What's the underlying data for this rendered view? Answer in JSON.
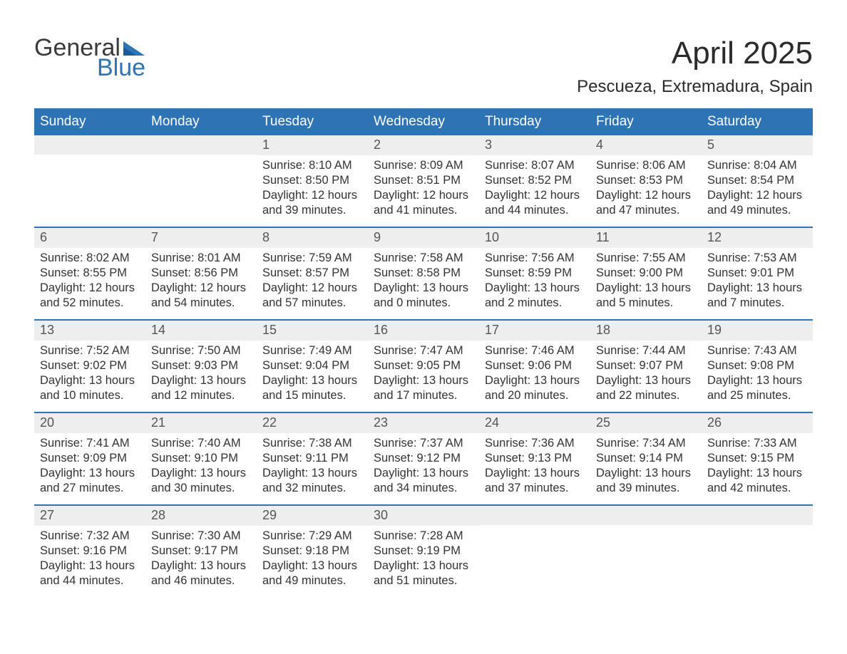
{
  "logo": {
    "word1": "General",
    "word2": "Blue",
    "color1": "#3a3a3a",
    "color2": "#2e74b5"
  },
  "title": "April 2025",
  "location": "Pescueza, Extremadura, Spain",
  "colors": {
    "header_bg": "#2e74b5",
    "header_text": "#ffffff",
    "daynum_bg": "#eeeeee",
    "row_border": "#2e74b5",
    "body_text": "#333333",
    "background": "#ffffff"
  },
  "fonts": {
    "title_size_pt": 33,
    "location_size_pt": 18,
    "dayheader_size_pt": 14,
    "daynum_size_pt": 14,
    "body_size_pt": 12
  },
  "day_labels": [
    "Sunday",
    "Monday",
    "Tuesday",
    "Wednesday",
    "Thursday",
    "Friday",
    "Saturday"
  ],
  "weeks": [
    [
      null,
      null,
      {
        "n": "1",
        "sunrise": "8:10 AM",
        "sunset": "8:50 PM",
        "daylight": "12 hours and 39 minutes."
      },
      {
        "n": "2",
        "sunrise": "8:09 AM",
        "sunset": "8:51 PM",
        "daylight": "12 hours and 41 minutes."
      },
      {
        "n": "3",
        "sunrise": "8:07 AM",
        "sunset": "8:52 PM",
        "daylight": "12 hours and 44 minutes."
      },
      {
        "n": "4",
        "sunrise": "8:06 AM",
        "sunset": "8:53 PM",
        "daylight": "12 hours and 47 minutes."
      },
      {
        "n": "5",
        "sunrise": "8:04 AM",
        "sunset": "8:54 PM",
        "daylight": "12 hours and 49 minutes."
      }
    ],
    [
      {
        "n": "6",
        "sunrise": "8:02 AM",
        "sunset": "8:55 PM",
        "daylight": "12 hours and 52 minutes."
      },
      {
        "n": "7",
        "sunrise": "8:01 AM",
        "sunset": "8:56 PM",
        "daylight": "12 hours and 54 minutes."
      },
      {
        "n": "8",
        "sunrise": "7:59 AM",
        "sunset": "8:57 PM",
        "daylight": "12 hours and 57 minutes."
      },
      {
        "n": "9",
        "sunrise": "7:58 AM",
        "sunset": "8:58 PM",
        "daylight": "13 hours and 0 minutes."
      },
      {
        "n": "10",
        "sunrise": "7:56 AM",
        "sunset": "8:59 PM",
        "daylight": "13 hours and 2 minutes."
      },
      {
        "n": "11",
        "sunrise": "7:55 AM",
        "sunset": "9:00 PM",
        "daylight": "13 hours and 5 minutes."
      },
      {
        "n": "12",
        "sunrise": "7:53 AM",
        "sunset": "9:01 PM",
        "daylight": "13 hours and 7 minutes."
      }
    ],
    [
      {
        "n": "13",
        "sunrise": "7:52 AM",
        "sunset": "9:02 PM",
        "daylight": "13 hours and 10 minutes."
      },
      {
        "n": "14",
        "sunrise": "7:50 AM",
        "sunset": "9:03 PM",
        "daylight": "13 hours and 12 minutes."
      },
      {
        "n": "15",
        "sunrise": "7:49 AM",
        "sunset": "9:04 PM",
        "daylight": "13 hours and 15 minutes."
      },
      {
        "n": "16",
        "sunrise": "7:47 AM",
        "sunset": "9:05 PM",
        "daylight": "13 hours and 17 minutes."
      },
      {
        "n": "17",
        "sunrise": "7:46 AM",
        "sunset": "9:06 PM",
        "daylight": "13 hours and 20 minutes."
      },
      {
        "n": "18",
        "sunrise": "7:44 AM",
        "sunset": "9:07 PM",
        "daylight": "13 hours and 22 minutes."
      },
      {
        "n": "19",
        "sunrise": "7:43 AM",
        "sunset": "9:08 PM",
        "daylight": "13 hours and 25 minutes."
      }
    ],
    [
      {
        "n": "20",
        "sunrise": "7:41 AM",
        "sunset": "9:09 PM",
        "daylight": "13 hours and 27 minutes."
      },
      {
        "n": "21",
        "sunrise": "7:40 AM",
        "sunset": "9:10 PM",
        "daylight": "13 hours and 30 minutes."
      },
      {
        "n": "22",
        "sunrise": "7:38 AM",
        "sunset": "9:11 PM",
        "daylight": "13 hours and 32 minutes."
      },
      {
        "n": "23",
        "sunrise": "7:37 AM",
        "sunset": "9:12 PM",
        "daylight": "13 hours and 34 minutes."
      },
      {
        "n": "24",
        "sunrise": "7:36 AM",
        "sunset": "9:13 PM",
        "daylight": "13 hours and 37 minutes."
      },
      {
        "n": "25",
        "sunrise": "7:34 AM",
        "sunset": "9:14 PM",
        "daylight": "13 hours and 39 minutes."
      },
      {
        "n": "26",
        "sunrise": "7:33 AM",
        "sunset": "9:15 PM",
        "daylight": "13 hours and 42 minutes."
      }
    ],
    [
      {
        "n": "27",
        "sunrise": "7:32 AM",
        "sunset": "9:16 PM",
        "daylight": "13 hours and 44 minutes."
      },
      {
        "n": "28",
        "sunrise": "7:30 AM",
        "sunset": "9:17 PM",
        "daylight": "13 hours and 46 minutes."
      },
      {
        "n": "29",
        "sunrise": "7:29 AM",
        "sunset": "9:18 PM",
        "daylight": "13 hours and 49 minutes."
      },
      {
        "n": "30",
        "sunrise": "7:28 AM",
        "sunset": "9:19 PM",
        "daylight": "13 hours and 51 minutes."
      },
      null,
      null,
      null
    ]
  ],
  "labels": {
    "sunrise": "Sunrise: ",
    "sunset": "Sunset: ",
    "daylight": "Daylight: "
  }
}
